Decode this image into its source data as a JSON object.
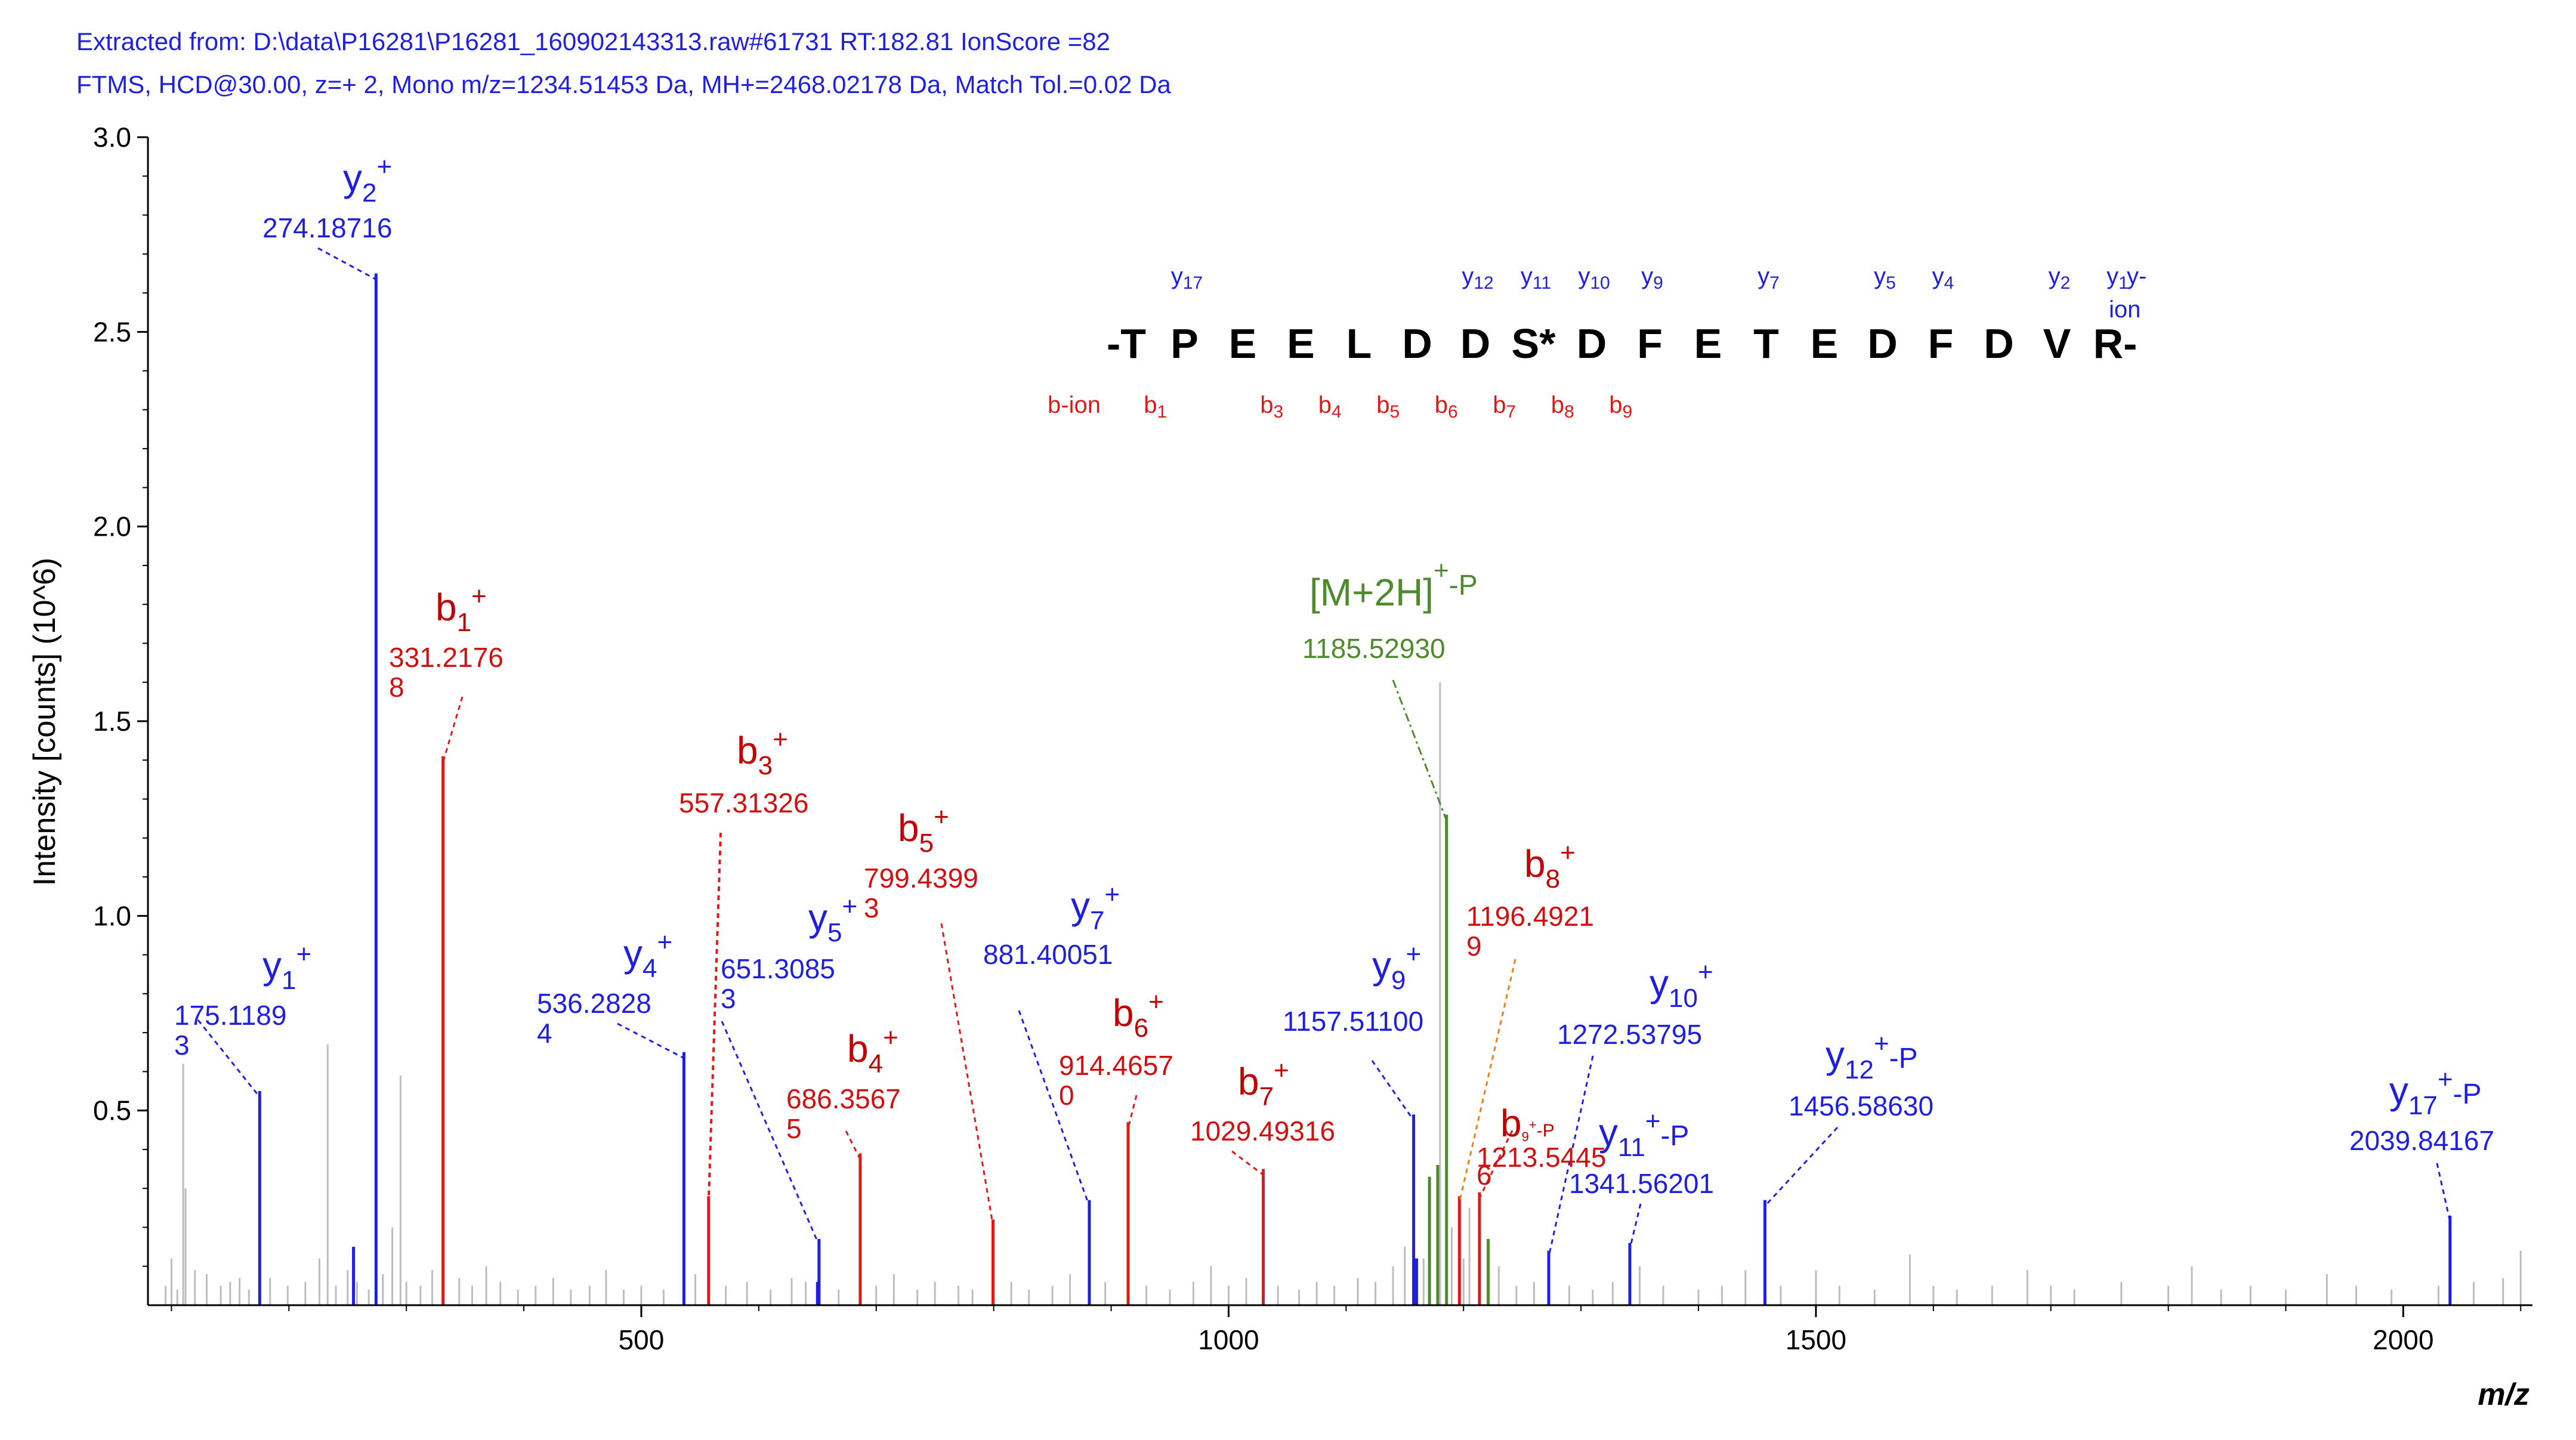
{
  "header": {
    "line1": "Extracted from: D:\\data\\P16281\\P16281_160902143313.raw#61731  RT:182.81  IonScore =82",
    "line2": "FTMS, HCD@30.00, z=+ 2, Mono m/z=1234.51453 Da, MH+=2468.02178 Da, Match Tol.=0.02 Da"
  },
  "colors": {
    "y": "#1f1fe0",
    "b": "#e01818",
    "b_dark": "#c00000",
    "precursor": "#4f8a2e",
    "noise": "#bdbdbd",
    "orange": "#f07f12"
  },
  "sequence": {
    "residues": [
      "-T",
      "P",
      "E",
      "E",
      "L",
      "D",
      "D",
      "S*",
      "D",
      "F",
      "E",
      "T",
      "E",
      "D",
      "F",
      "D",
      "V",
      "R-"
    ],
    "y_labels": [
      {
        "main": "y",
        "sub": "17",
        "at": 1
      },
      {
        "main": "y",
        "sub": "12",
        "at": 6
      },
      {
        "main": "y",
        "sub": "11",
        "at": 7
      },
      {
        "main": "y",
        "sub": "10",
        "at": 8
      },
      {
        "main": "y",
        "sub": "9",
        "at": 9
      },
      {
        "main": "y",
        "sub": "7",
        "at": 11
      },
      {
        "main": "y",
        "sub": "5",
        "at": 13
      },
      {
        "main": "y",
        "sub": "4",
        "at": 14
      },
      {
        "main": "y",
        "sub": "2",
        "at": 16
      },
      {
        "main": "y",
        "sub": "1",
        "at": 17
      }
    ],
    "y_series_label": [
      "y-",
      "ion"
    ],
    "b_series_label": "b-ion",
    "b_labels": [
      {
        "main": "b",
        "sub": "1",
        "at": 0.5
      },
      {
        "main": "b",
        "sub": "3",
        "at": 2.5
      },
      {
        "main": "b",
        "sub": "4",
        "at": 3.5
      },
      {
        "main": "b",
        "sub": "5",
        "at": 4.5
      },
      {
        "main": "b",
        "sub": "6",
        "at": 5.5
      },
      {
        "main": "b",
        "sub": "7",
        "at": 6.5
      },
      {
        "main": "b",
        "sub": "8",
        "at": 7.5
      },
      {
        "main": "b",
        "sub": "9",
        "at": 8.5
      }
    ]
  },
  "chart_data": {
    "type": "bar",
    "title": "",
    "xlabel": "m/z",
    "ylabel": "Intensity [counts] (10^6)",
    "xlim": [
      80,
      2110
    ],
    "ylim": [
      0,
      3.0
    ],
    "xticks": [
      500,
      1000,
      1500,
      2000
    ],
    "yticks": [
      0.5,
      1.0,
      1.5,
      2.0,
      2.5,
      3.0
    ],
    "xtick_labels": [
      "500",
      "1000",
      "1500",
      "2000"
    ],
    "ytick_labels": [
      "0.5",
      "1.0",
      "1.5",
      "2.0",
      "2.5",
      "3.0"
    ],
    "series": [
      {
        "name": "y-ions",
        "color": "#1f1fe0",
        "peaks": [
          {
            "mz": 175.1189,
            "i": 0.55,
            "name": "y",
            "sub": "1",
            "sup": "+",
            "suffix": "",
            "mz_lines": [
              "175.1189",
              "3"
            ]
          },
          {
            "mz": 274.18716,
            "i": 2.65,
            "name": "y",
            "sub": "2",
            "sup": "+",
            "suffix": "",
            "mz_lines": [
              "274.18716"
            ]
          },
          {
            "mz": 536.2828,
            "i": 0.65,
            "name": "y",
            "sub": "4",
            "sup": "+",
            "suffix": "",
            "mz_lines": [
              "536.2828",
              "4"
            ]
          },
          {
            "mz": 651.3085,
            "i": 0.17,
            "name": "y",
            "sub": "5",
            "sup": "+",
            "suffix": "",
            "mz_lines": [
              "651.3085",
              "3"
            ]
          },
          {
            "mz": 881.40051,
            "i": 0.27,
            "name": "y",
            "sub": "7",
            "sup": "+",
            "suffix": "",
            "mz_lines": [
              "881.40051"
            ]
          },
          {
            "mz": 1157.511,
            "i": 0.49,
            "name": "y",
            "sub": "9",
            "sup": "+",
            "suffix": "",
            "mz_lines": [
              "1157.51100"
            ]
          },
          {
            "mz": 1272.53795,
            "i": 0.14,
            "name": "y",
            "sub": "10",
            "sup": "+",
            "suffix": "",
            "mz_lines": [
              "1272.53795"
            ]
          },
          {
            "mz": 1341.56201,
            "i": 0.16,
            "name": "y",
            "sub": "11",
            "sup": "+",
            "suffix": "-P",
            "mz_lines": [
              "1341.56201"
            ]
          },
          {
            "mz": 1456.5863,
            "i": 0.27,
            "name": "y",
            "sub": "12",
            "sup": "+",
            "suffix": "-P",
            "mz_lines": [
              "1456.58630"
            ]
          },
          {
            "mz": 2039.84167,
            "i": 0.23,
            "name": "y",
            "sub": "17",
            "sup": "+",
            "suffix": "-P",
            "mz_lines": [
              "2039.84167"
            ]
          }
        ]
      },
      {
        "name": "b-ions",
        "color": "#e01818",
        "peaks": [
          {
            "mz": 331.21768,
            "i": 1.41,
            "name": "b",
            "sub": "1",
            "sup": "+",
            "suffix": "",
            "mz_lines": [
              "331.2176",
              "8"
            ]
          },
          {
            "mz": 557.31326,
            "i": 0.28,
            "name": "b",
            "sub": "3",
            "sup": "+",
            "suffix": "",
            "mz_lines": [
              "557.31326"
            ]
          },
          {
            "mz": 686.35675,
            "i": 0.39,
            "name": "b",
            "sub": "4",
            "sup": "+",
            "suffix": "",
            "mz_lines": [
              "686.3567",
              "5"
            ]
          },
          {
            "mz": 799.43993,
            "i": 0.22,
            "name": "b",
            "sub": "5",
            "sup": "+",
            "suffix": "",
            "mz_lines": [
              "799.4399",
              "3"
            ]
          },
          {
            "mz": 914.4657,
            "i": 0.47,
            "name": "b",
            "sub": "6",
            "sup": "+",
            "suffix": "",
            "mz_lines": [
              "914.4657",
              "0"
            ]
          },
          {
            "mz": 1029.49316,
            "i": 0.35,
            "name": "b",
            "sub": "7",
            "sup": "+",
            "suffix": "",
            "mz_lines": [
              "1029.49316"
            ]
          },
          {
            "mz": 1196.49219,
            "i": 0.28,
            "name": "b",
            "sub": "8",
            "sup": "+",
            "suffix": "",
            "mz_lines": [
              "1196.4921",
              "9"
            ]
          },
          {
            "mz": 1213.54456,
            "i": 0.29,
            "name": "b",
            "sub": "9",
            "sup": "+",
            "suffix": "-P",
            "mz_lines": [
              "1213.5445",
              "6"
            ]
          }
        ]
      },
      {
        "name": "precursor",
        "color": "#4f8a2e",
        "peaks": [
          {
            "mz": 1185.5293,
            "i": 1.26,
            "name": "[M+2H]",
            "sub": "",
            "sup": "+",
            "suffix": "-P",
            "mz_lines": [
              "1185.52930"
            ]
          }
        ]
      },
      {
        "name": "other-matched",
        "color": "#1f1fe0",
        "peaks": [
          {
            "mz": 255,
            "i": 0.15
          },
          {
            "mz": 650,
            "i": 0.06
          },
          {
            "mz": 1160,
            "i": 0.12
          }
        ]
      },
      {
        "name": "other-matched-precursor",
        "color": "#4f8a2e",
        "peaks": [
          {
            "mz": 1171,
            "i": 0.33
          },
          {
            "mz": 1178,
            "i": 0.36
          },
          {
            "mz": 1221,
            "i": 0.17
          }
        ]
      },
      {
        "name": "unassigned",
        "color": "#bdbdbd",
        "peaks": [
          {
            "mz": 95,
            "i": 0.05
          },
          {
            "mz": 100,
            "i": 0.12
          },
          {
            "mz": 105,
            "i": 0.04
          },
          {
            "mz": 110,
            "i": 0.62
          },
          {
            "mz": 112,
            "i": 0.3
          },
          {
            "mz": 120,
            "i": 0.09
          },
          {
            "mz": 130,
            "i": 0.08
          },
          {
            "mz": 142,
            "i": 0.05
          },
          {
            "mz": 150,
            "i": 0.06
          },
          {
            "mz": 158,
            "i": 0.07
          },
          {
            "mz": 166,
            "i": 0.04
          },
          {
            "mz": 184,
            "i": 0.07
          },
          {
            "mz": 199,
            "i": 0.05
          },
          {
            "mz": 214,
            "i": 0.06
          },
          {
            "mz": 226,
            "i": 0.12
          },
          {
            "mz": 233,
            "i": 0.67
          },
          {
            "mz": 240,
            "i": 0.05
          },
          {
            "mz": 250,
            "i": 0.09
          },
          {
            "mz": 258,
            "i": 0.06
          },
          {
            "mz": 268,
            "i": 0.04
          },
          {
            "mz": 280,
            "i": 0.08
          },
          {
            "mz": 288,
            "i": 0.2
          },
          {
            "mz": 295,
            "i": 0.59
          },
          {
            "mz": 300,
            "i": 0.06
          },
          {
            "mz": 312,
            "i": 0.05
          },
          {
            "mz": 322,
            "i": 0.09
          },
          {
            "mz": 345,
            "i": 0.07
          },
          {
            "mz": 356,
            "i": 0.05
          },
          {
            "mz": 368,
            "i": 0.1
          },
          {
            "mz": 380,
            "i": 0.06
          },
          {
            "mz": 395,
            "i": 0.04
          },
          {
            "mz": 410,
            "i": 0.05
          },
          {
            "mz": 425,
            "i": 0.07
          },
          {
            "mz": 440,
            "i": 0.04
          },
          {
            "mz": 456,
            "i": 0.05
          },
          {
            "mz": 470,
            "i": 0.09
          },
          {
            "mz": 485,
            "i": 0.04
          },
          {
            "mz": 500,
            "i": 0.05
          },
          {
            "mz": 519,
            "i": 0.04
          },
          {
            "mz": 546,
            "i": 0.08
          },
          {
            "mz": 572,
            "i": 0.05
          },
          {
            "mz": 590,
            "i": 0.06
          },
          {
            "mz": 610,
            "i": 0.04
          },
          {
            "mz": 628,
            "i": 0.07
          },
          {
            "mz": 640,
            "i": 0.06
          },
          {
            "mz": 668,
            "i": 0.04
          },
          {
            "mz": 700,
            "i": 0.05
          },
          {
            "mz": 715,
            "i": 0.08
          },
          {
            "mz": 735,
            "i": 0.04
          },
          {
            "mz": 750,
            "i": 0.06
          },
          {
            "mz": 770,
            "i": 0.05
          },
          {
            "mz": 782,
            "i": 0.04
          },
          {
            "mz": 815,
            "i": 0.06
          },
          {
            "mz": 830,
            "i": 0.04
          },
          {
            "mz": 850,
            "i": 0.05
          },
          {
            "mz": 865,
            "i": 0.08
          },
          {
            "mz": 895,
            "i": 0.06
          },
          {
            "mz": 930,
            "i": 0.05
          },
          {
            "mz": 950,
            "i": 0.04
          },
          {
            "mz": 970,
            "i": 0.06
          },
          {
            "mz": 985,
            "i": 0.1
          },
          {
            "mz": 1000,
            "i": 0.05
          },
          {
            "mz": 1015,
            "i": 0.07
          },
          {
            "mz": 1042,
            "i": 0.05
          },
          {
            "mz": 1060,
            "i": 0.04
          },
          {
            "mz": 1075,
            "i": 0.06
          },
          {
            "mz": 1090,
            "i": 0.05
          },
          {
            "mz": 1110,
            "i": 0.07
          },
          {
            "mz": 1125,
            "i": 0.06
          },
          {
            "mz": 1140,
            "i": 0.1
          },
          {
            "mz": 1150,
            "i": 0.15
          },
          {
            "mz": 1166,
            "i": 0.12
          },
          {
            "mz": 1180,
            "i": 1.6
          },
          {
            "mz": 1190,
            "i": 0.2
          },
          {
            "mz": 1200,
            "i": 0.12
          },
          {
            "mz": 1205,
            "i": 0.25
          },
          {
            "mz": 1230,
            "i": 0.1
          },
          {
            "mz": 1245,
            "i": 0.05
          },
          {
            "mz": 1260,
            "i": 0.06
          },
          {
            "mz": 1290,
            "i": 0.05
          },
          {
            "mz": 1310,
            "i": 0.04
          },
          {
            "mz": 1327,
            "i": 0.06
          },
          {
            "mz": 1350,
            "i": 0.1
          },
          {
            "mz": 1370,
            "i": 0.05
          },
          {
            "mz": 1400,
            "i": 0.04
          },
          {
            "mz": 1420,
            "i": 0.05
          },
          {
            "mz": 1440,
            "i": 0.09
          },
          {
            "mz": 1470,
            "i": 0.05
          },
          {
            "mz": 1500,
            "i": 0.09
          },
          {
            "mz": 1520,
            "i": 0.05
          },
          {
            "mz": 1550,
            "i": 0.04
          },
          {
            "mz": 1580,
            "i": 0.13
          },
          {
            "mz": 1600,
            "i": 0.05
          },
          {
            "mz": 1620,
            "i": 0.04
          },
          {
            "mz": 1650,
            "i": 0.05
          },
          {
            "mz": 1680,
            "i": 0.09
          },
          {
            "mz": 1700,
            "i": 0.05
          },
          {
            "mz": 1720,
            "i": 0.04
          },
          {
            "mz": 1760,
            "i": 0.06
          },
          {
            "mz": 1800,
            "i": 0.05
          },
          {
            "mz": 1820,
            "i": 0.1
          },
          {
            "mz": 1845,
            "i": 0.04
          },
          {
            "mz": 1870,
            "i": 0.05
          },
          {
            "mz": 1900,
            "i": 0.04
          },
          {
            "mz": 1935,
            "i": 0.08
          },
          {
            "mz": 1960,
            "i": 0.05
          },
          {
            "mz": 1990,
            "i": 0.04
          },
          {
            "mz": 2030,
            "i": 0.05
          },
          {
            "mz": 2060,
            "i": 0.06
          },
          {
            "mz": 2085,
            "i": 0.07
          },
          {
            "mz": 2100,
            "i": 0.14
          }
        ]
      }
    ]
  }
}
